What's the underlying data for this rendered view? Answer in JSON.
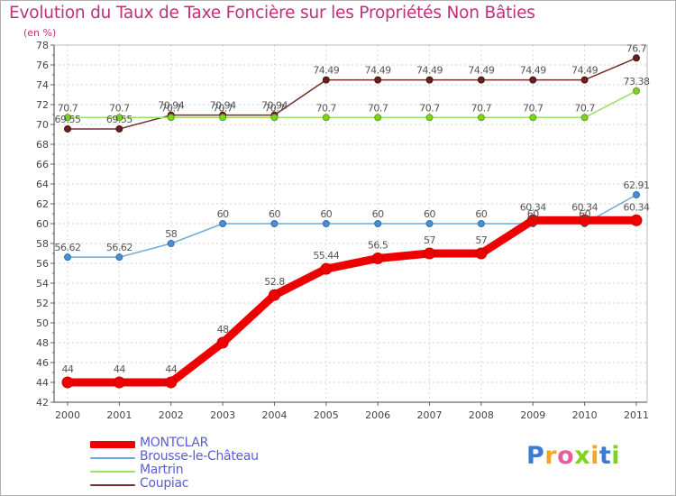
{
  "chart_data": {
    "type": "line",
    "title": "Evolution du Taux de Taxe Foncière sur les Propriétés Non Bâties",
    "ylabel": "(en %)",
    "xlabel": "",
    "x": [
      "2000",
      "2001",
      "2002",
      "2003",
      "2004",
      "2005",
      "2006",
      "2007",
      "2008",
      "2009",
      "2010",
      "2011"
    ],
    "ylim": [
      42,
      78
    ],
    "ytick_step": 2,
    "grid": "horizontal-dashed",
    "series": [
      {
        "name": "MONTCLAR",
        "color": "#ee0000",
        "values": [
          44,
          44,
          44,
          48,
          52.8,
          55.44,
          56.5,
          57,
          57,
          60.34,
          60.34,
          60.34
        ],
        "labels": [
          "44",
          "44",
          "44",
          "48",
          "52.8",
          "55.44",
          "56.5",
          "57",
          "57",
          "60.34",
          "60.34",
          "60.34"
        ]
      },
      {
        "name": "Brousse-le-Château",
        "color": "#6fa8dc",
        "values": [
          56.62,
          56.62,
          58,
          60,
          60,
          60,
          60,
          60,
          60,
          60,
          60,
          62.91
        ],
        "labels": [
          "56.62",
          "56.62",
          "58",
          "60",
          "60",
          "60",
          "60",
          "60",
          "60",
          "60",
          "60",
          "62.91"
        ]
      },
      {
        "name": "Martrin",
        "color": "#99e066",
        "values": [
          70.7,
          70.7,
          70.7,
          70.7,
          70.7,
          70.7,
          70.7,
          70.7,
          70.7,
          70.7,
          70.7,
          73.38
        ],
        "labels": [
          "70.7",
          "70.7",
          "70.7",
          "70.7",
          "70.7",
          "70.7",
          "70.7",
          "70.7",
          "70.7",
          "70.7",
          "70.7",
          "73.38"
        ]
      },
      {
        "name": "Coupiac",
        "color": "#7a2b2b",
        "values": [
          69.55,
          69.55,
          70.94,
          70.94,
          70.94,
          74.49,
          74.49,
          74.49,
          74.49,
          74.49,
          74.49,
          76.7
        ],
        "labels": [
          "69.55",
          "69.55",
          "70.94",
          "70.94",
          "70.94",
          "74.49",
          "74.49",
          "74.49",
          "74.49",
          "74.49",
          "74.49",
          "76.7"
        ]
      }
    ]
  },
  "branding": {
    "logo_text": "Proxiti",
    "logo_colors": [
      "#3a7bd5",
      "#f5a623",
      "#e85d9c",
      "#7ed321",
      "#f5a623",
      "#3a7bd5",
      "#7ed321"
    ]
  }
}
